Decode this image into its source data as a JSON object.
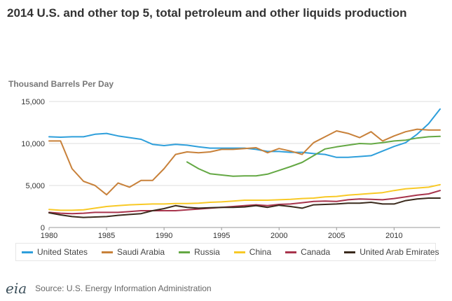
{
  "chart_data": {
    "type": "line",
    "title": "2014 U.S. and other top 5, total petroleum and other liquids production",
    "ylabel": "Thousand Barrels Per Day",
    "xlabel": "",
    "xlim": [
      1980,
      2014
    ],
    "ylim": [
      0,
      15000
    ],
    "x_ticks": [
      "1980",
      "1985",
      "1990",
      "1995",
      "2000",
      "2005",
      "2010"
    ],
    "y_ticks": [
      "0",
      "5,000",
      "10,000",
      "15,000"
    ],
    "grid": "horizontal",
    "legend": "bottom",
    "series": [
      {
        "name": "United States",
        "color": "#2e9fdb",
        "x": [
          1980,
          1981,
          1982,
          1983,
          1984,
          1985,
          1986,
          1987,
          1988,
          1989,
          1990,
          1991,
          1992,
          1993,
          1994,
          1995,
          1996,
          1997,
          1998,
          1999,
          2000,
          2001,
          2002,
          2003,
          2004,
          2005,
          2006,
          2007,
          2008,
          2009,
          2010,
          2011,
          2012,
          2013,
          2014
        ],
        "values": [
          10800,
          10750,
          10800,
          10800,
          11100,
          11200,
          10900,
          10700,
          10500,
          9900,
          9750,
          9900,
          9800,
          9600,
          9450,
          9450,
          9450,
          9450,
          9300,
          9050,
          9050,
          8950,
          8950,
          8800,
          8700,
          8350,
          8350,
          8450,
          8550,
          9100,
          9650,
          10100,
          11100,
          12350,
          14100
        ]
      },
      {
        "name": "Saudi Arabia",
        "color": "#c8813a",
        "x": [
          1980,
          1981,
          1982,
          1983,
          1984,
          1985,
          1986,
          1987,
          1988,
          1989,
          1990,
          1991,
          1992,
          1993,
          1994,
          1995,
          1996,
          1997,
          1998,
          1999,
          2000,
          2001,
          2002,
          2003,
          2004,
          2005,
          2006,
          2007,
          2008,
          2009,
          2010,
          2011,
          2012,
          2013,
          2014
        ],
        "values": [
          10300,
          10300,
          7000,
          5500,
          5000,
          3900,
          5300,
          4800,
          5600,
          5600,
          7000,
          8700,
          9000,
          8900,
          9000,
          9300,
          9300,
          9400,
          9500,
          8900,
          9400,
          9100,
          8700,
          10100,
          10800,
          11500,
          11200,
          10700,
          11400,
          10300,
          10900,
          11400,
          11700,
          11600,
          11600
        ]
      },
      {
        "name": "Russia",
        "color": "#64a844",
        "x": [
          1992,
          1993,
          1994,
          1995,
          1996,
          1997,
          1998,
          1999,
          2000,
          2001,
          2002,
          2003,
          2004,
          2005,
          2006,
          2007,
          2008,
          2009,
          2010,
          2011,
          2012,
          2013,
          2014
        ],
        "values": [
          7800,
          7000,
          6400,
          6250,
          6100,
          6150,
          6150,
          6350,
          6800,
          7250,
          7750,
          8550,
          9350,
          9600,
          9800,
          10000,
          9950,
          10100,
          10300,
          10400,
          10650,
          10800,
          10850
        ]
      },
      {
        "name": "China",
        "color": "#f8c926",
        "x": [
          1980,
          1981,
          1982,
          1983,
          1984,
          1985,
          1986,
          1987,
          1988,
          1989,
          1990,
          1991,
          1992,
          1993,
          1994,
          1995,
          1996,
          1997,
          1998,
          1999,
          2000,
          2001,
          2002,
          2003,
          2004,
          2005,
          2006,
          2007,
          2008,
          2009,
          2010,
          2011,
          2012,
          2013,
          2014
        ],
        "values": [
          2150,
          2050,
          2050,
          2100,
          2300,
          2500,
          2600,
          2700,
          2750,
          2800,
          2800,
          2850,
          2850,
          2900,
          3000,
          3050,
          3150,
          3250,
          3250,
          3250,
          3300,
          3350,
          3450,
          3500,
          3650,
          3700,
          3850,
          3950,
          4050,
          4150,
          4400,
          4600,
          4700,
          4800,
          5100
        ]
      },
      {
        "name": "Canada",
        "color": "#a8344c",
        "x": [
          1980,
          1981,
          1982,
          1983,
          1984,
          1985,
          1986,
          1987,
          1988,
          1989,
          1990,
          1991,
          1992,
          1993,
          1994,
          1995,
          1996,
          1997,
          1998,
          1999,
          2000,
          2001,
          2002,
          2003,
          2004,
          2005,
          2006,
          2007,
          2008,
          2009,
          2010,
          2011,
          2012,
          2013,
          2014
        ],
        "values": [
          1800,
          1700,
          1650,
          1700,
          1800,
          1800,
          1800,
          1900,
          2000,
          2000,
          2000,
          2000,
          2100,
          2200,
          2300,
          2400,
          2500,
          2600,
          2700,
          2600,
          2750,
          2800,
          2950,
          3100,
          3150,
          3100,
          3300,
          3400,
          3350,
          3300,
          3450,
          3650,
          3850,
          4000,
          4400
        ]
      },
      {
        "name": "United Arab Emirates",
        "color": "#3a2a1c",
        "x": [
          1980,
          1981,
          1982,
          1983,
          1984,
          1985,
          1986,
          1987,
          1988,
          1989,
          1990,
          1991,
          1992,
          1993,
          1994,
          1995,
          1996,
          1997,
          1998,
          1999,
          2000,
          2001,
          2002,
          2003,
          2004,
          2005,
          2006,
          2007,
          2008,
          2009,
          2010,
          2011,
          2012,
          2013,
          2014
        ],
        "values": [
          1750,
          1500,
          1300,
          1200,
          1250,
          1300,
          1450,
          1550,
          1650,
          2000,
          2250,
          2600,
          2400,
          2300,
          2350,
          2400,
          2400,
          2450,
          2600,
          2400,
          2650,
          2500,
          2300,
          2700,
          2750,
          2800,
          2900,
          2900,
          3000,
          2800,
          2800,
          3200,
          3400,
          3500,
          3500
        ]
      }
    ]
  },
  "footer": {
    "logo_text": "eia",
    "source": "Source: U.S. Energy Information Administration"
  }
}
